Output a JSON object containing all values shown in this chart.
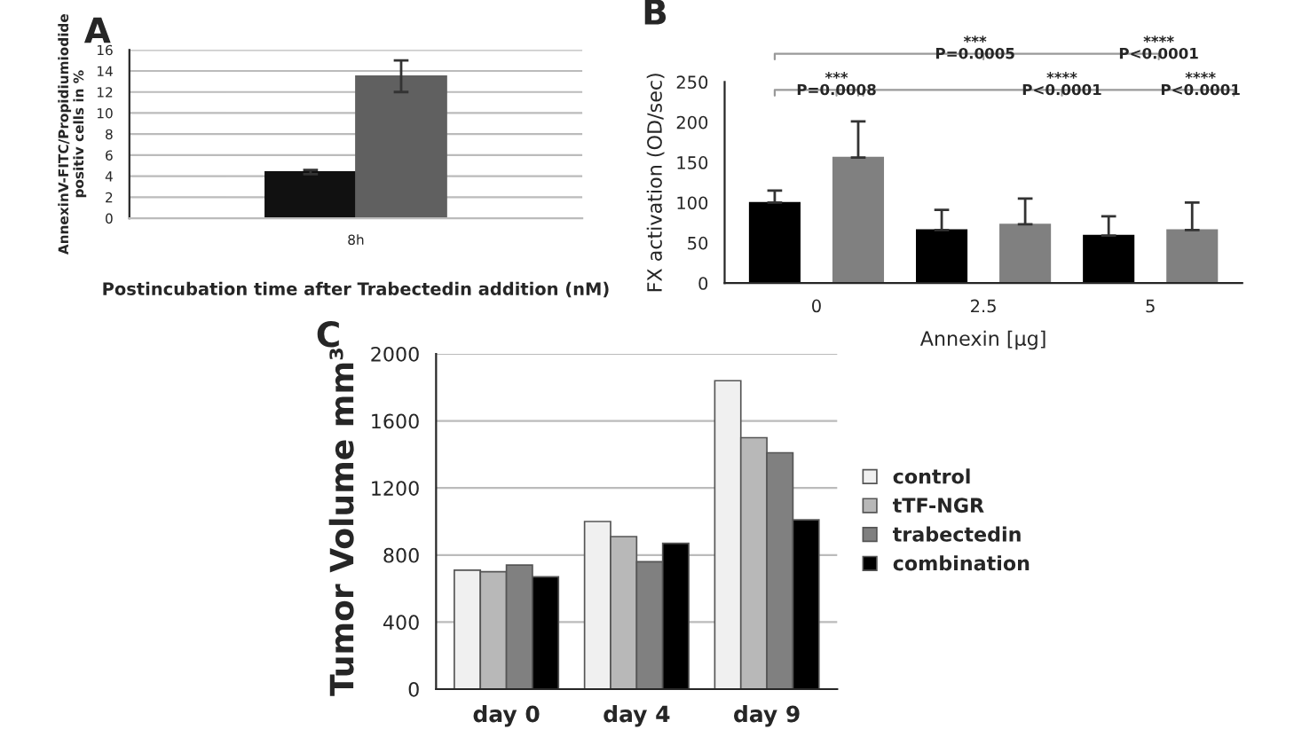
{
  "chart_data": [
    {
      "type": "bar",
      "title": "A",
      "ylabel": "AnnexinV-FITC/Propidiumiodide\npositiv cells in %",
      "xlabel": "Postincubation time after Trabectedin addition (nM)",
      "categories": [
        "8h"
      ],
      "series": [
        {
          "color": "#111111",
          "values": [
            4.4
          ],
          "errors": [
            0.2
          ]
        },
        {
          "color": "#606060",
          "values": [
            13.5
          ],
          "errors": [
            1.5
          ]
        }
      ],
      "ylim": [
        0,
        16
      ],
      "yticks": [
        0,
        2,
        4,
        6,
        8,
        10,
        12,
        14,
        16
      ],
      "grid": "y"
    },
    {
      "type": "bar",
      "title": "B",
      "ylabel": "FX activation (OD/sec)",
      "xlabel": "Annexin [µg]",
      "categories": [
        "0",
        "2.5",
        "5"
      ],
      "series": [
        {
          "color": "#000000",
          "values": [
            100,
            66,
            59
          ],
          "errors": [
            [
              100,
              115
            ],
            [
              66,
              91
            ],
            [
              59,
              83
            ]
          ]
        },
        {
          "color": "#808080",
          "values": [
            156,
            73,
            66
          ],
          "errors": [
            [
              156,
              201
            ],
            [
              73,
              105
            ],
            [
              66,
              100
            ]
          ]
        }
      ],
      "ylim": [
        0,
        250
      ],
      "yticks": [
        0,
        50,
        100,
        150,
        200,
        250
      ],
      "grid": false,
      "annotations": [
        "***",
        "P=0.0005",
        "****",
        "P<0.0001",
        "***",
        "P=0.0008",
        "****",
        "P<0.0001",
        "****",
        "P<0.0001"
      ]
    },
    {
      "type": "bar",
      "title": "C",
      "ylabel": "Tumor Volume mm³",
      "categories": [
        "day 0",
        "day 4",
        "day 9"
      ],
      "series": [
        {
          "name": "control",
          "color": "#f0f0f0",
          "values": [
            710,
            1000,
            1840
          ]
        },
        {
          "name": "tTF-NGR",
          "color": "#b8b8b8",
          "values": [
            700,
            910,
            1500
          ]
        },
        {
          "name": "trabectedin",
          "color": "#808080",
          "values": [
            740,
            760,
            1410
          ]
        },
        {
          "name": "combination",
          "color": "#000000",
          "values": [
            670,
            870,
            1010
          ]
        }
      ],
      "ylim": [
        0,
        2000
      ],
      "yticks": [
        0,
        400,
        800,
        1200,
        1600,
        2000
      ],
      "grid": "y",
      "legend": "right"
    }
  ]
}
